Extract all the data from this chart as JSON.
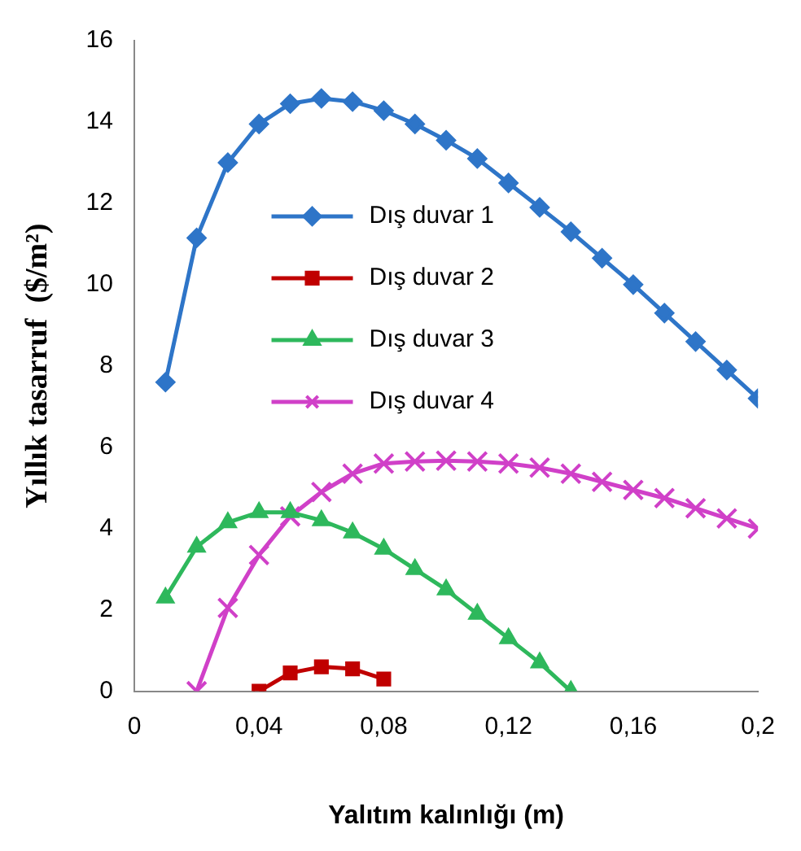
{
  "chart_data": {
    "type": "line",
    "xlabel": "Yalıtım kalınlığı (m)",
    "ylabel": "Yıllık tasarruf  ($/m²)",
    "xlim": [
      0,
      0.2
    ],
    "xticks": [
      0,
      {
        "value": 0.04,
        "label": "0,04"
      },
      {
        "value": 0.08,
        "label": "0,08"
      },
      {
        "value": 0.12,
        "label": "0,12"
      },
      {
        "value": 0.16,
        "label": "0,16"
      },
      {
        "value": 0.2,
        "label": "0,2"
      }
    ],
    "ylim": [
      0,
      16
    ],
    "yticks": [
      0,
      2,
      4,
      6,
      8,
      10,
      12,
      14,
      16
    ],
    "grid": false,
    "legend": "top",
    "line_style": "solid",
    "series": [
      {
        "name": "Dış duvar 1",
        "color": "#2e75c8",
        "marker": "diamond",
        "x": [
          0.01,
          0.02,
          0.03,
          0.04,
          0.05,
          0.06,
          0.07,
          0.08,
          0.09,
          0.1,
          0.11,
          0.12,
          0.13,
          0.14,
          0.15,
          0.16,
          0.17,
          0.18,
          0.19,
          0.2
        ],
        "values": [
          7.6,
          11.15,
          13.0,
          13.95,
          14.45,
          14.58,
          14.5,
          14.28,
          13.95,
          13.55,
          13.1,
          12.5,
          11.9,
          11.3,
          10.65,
          10.0,
          9.3,
          8.6,
          7.9,
          7.2
        ]
      },
      {
        "name": "Dış duvar 2",
        "color": "#c00000",
        "marker": "square",
        "x": [
          0.04,
          0.05,
          0.06,
          0.07,
          0.08
        ],
        "values": [
          0,
          0.45,
          0.6,
          0.55,
          0.3
        ]
      },
      {
        "name": "Dış duvar 3",
        "color": "#2eb85c",
        "marker": "triangle",
        "x": [
          0.01,
          0.02,
          0.03,
          0.04,
          0.05,
          0.06,
          0.07,
          0.08,
          0.09,
          0.1,
          0.11,
          0.12,
          0.13,
          0.14
        ],
        "values": [
          2.3,
          3.55,
          4.15,
          4.4,
          4.4,
          4.2,
          3.9,
          3.5,
          3.0,
          2.5,
          1.9,
          1.3,
          0.7,
          0
        ]
      },
      {
        "name": "Dış duvar 4",
        "color": "#d040c8",
        "marker": "cross",
        "x": [
          0.02,
          0.03,
          0.04,
          0.05,
          0.06,
          0.07,
          0.08,
          0.09,
          0.1,
          0.11,
          0.12,
          0.13,
          0.14,
          0.15,
          0.16,
          0.17,
          0.18,
          0.19,
          0.2
        ],
        "values": [
          0,
          2.05,
          3.35,
          4.3,
          4.9,
          5.35,
          5.6,
          5.65,
          5.67,
          5.65,
          5.6,
          5.5,
          5.35,
          5.15,
          4.95,
          4.75,
          4.5,
          4.25,
          4.0
        ]
      }
    ]
  }
}
